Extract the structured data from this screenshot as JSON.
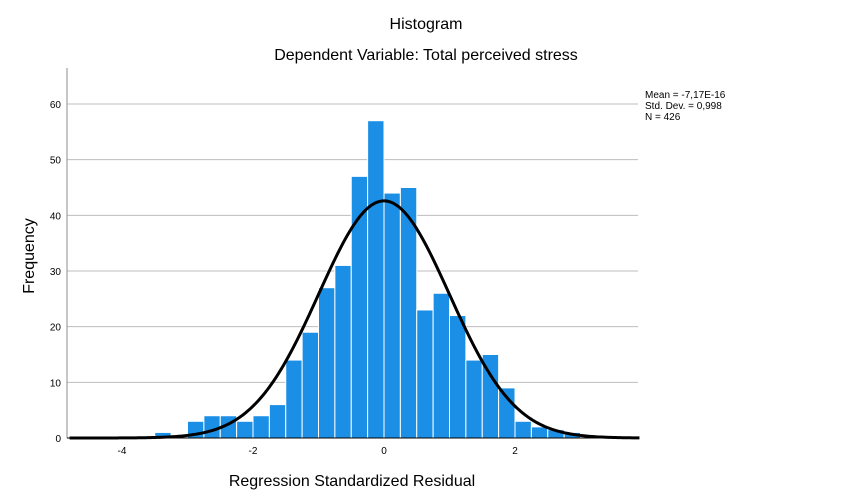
{
  "chart_data": {
    "type": "bar",
    "title": "Histogram",
    "subtitle": "Dependent Variable: Total perceived stress",
    "xlabel": "Regression Standardized Residual",
    "ylabel": "Frequency",
    "xlim": [
      -4.8,
      3.9
    ],
    "ylim": [
      0,
      60
    ],
    "x_ticks": [
      -4,
      -2,
      0,
      2
    ],
    "y_ticks": [
      0,
      10,
      20,
      30,
      40,
      50,
      60
    ],
    "bin_width": 0.25,
    "bins": [
      {
        "start": -3.5,
        "end": -3.25,
        "count": 1
      },
      {
        "start": -3.25,
        "end": -3.0,
        "count": 0
      },
      {
        "start": -3.0,
        "end": -2.75,
        "count": 3
      },
      {
        "start": -2.75,
        "end": -2.5,
        "count": 4
      },
      {
        "start": -2.5,
        "end": -2.25,
        "count": 4
      },
      {
        "start": -2.25,
        "end": -2.0,
        "count": 3
      },
      {
        "start": -2.0,
        "end": -1.75,
        "count": 4
      },
      {
        "start": -1.75,
        "end": -1.5,
        "count": 6
      },
      {
        "start": -1.5,
        "end": -1.25,
        "count": 14
      },
      {
        "start": -1.25,
        "end": -1.0,
        "count": 19
      },
      {
        "start": -1.0,
        "end": -0.75,
        "count": 27
      },
      {
        "start": -0.75,
        "end": -0.5,
        "count": 31
      },
      {
        "start": -0.5,
        "end": -0.25,
        "count": 47
      },
      {
        "start": -0.25,
        "end": 0.0,
        "count": 57
      },
      {
        "start": 0.0,
        "end": 0.25,
        "count": 44
      },
      {
        "start": 0.25,
        "end": 0.5,
        "count": 45
      },
      {
        "start": 0.5,
        "end": 0.75,
        "count": 23
      },
      {
        "start": 0.75,
        "end": 1.0,
        "count": 26
      },
      {
        "start": 1.0,
        "end": 1.25,
        "count": 22
      },
      {
        "start": 1.25,
        "end": 1.5,
        "count": 14
      },
      {
        "start": 1.5,
        "end": 1.75,
        "count": 15
      },
      {
        "start": 1.75,
        "end": 2.0,
        "count": 9
      },
      {
        "start": 2.0,
        "end": 2.25,
        "count": 3
      },
      {
        "start": 2.25,
        "end": 2.5,
        "count": 2
      },
      {
        "start": 2.5,
        "end": 2.75,
        "count": 1.5
      },
      {
        "start": 2.75,
        "end": 3.0,
        "count": 1
      }
    ],
    "normal_curve": {
      "mean": -7.17e-16,
      "std": 0.998,
      "n": 426,
      "peak": 42.6
    },
    "stats": {
      "mean": "Mean = -7,17E-16",
      "std": "Std. Dev. = 0,998",
      "n": "N = 426"
    },
    "grid": true,
    "colors": {
      "bar_fill": "#1b8fe6",
      "bar_stroke": "#ffffff",
      "curve": "#000000",
      "grid": "#bdbdbd",
      "axis": "#000000"
    }
  }
}
